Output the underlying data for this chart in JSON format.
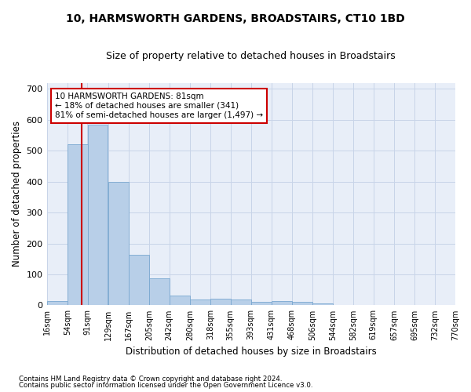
{
  "title": "10, HARMSWORTH GARDENS, BROADSTAIRS, CT10 1BD",
  "subtitle": "Size of property relative to detached houses in Broadstairs",
  "xlabel": "Distribution of detached houses by size in Broadstairs",
  "ylabel": "Number of detached properties",
  "bar_color": "#b8cfe8",
  "bar_edge_color": "#7aa8d0",
  "grid_color": "#c8d4e8",
  "background_color": "#e8eef8",
  "bin_edges": [
    16,
    54,
    91,
    129,
    167,
    205,
    242,
    280,
    318,
    355,
    393,
    431,
    468,
    506,
    544,
    582,
    619,
    657,
    695,
    732,
    770
  ],
  "bar_heights": [
    14,
    521,
    584,
    400,
    163,
    88,
    31,
    18,
    21,
    19,
    11,
    13,
    11,
    6,
    0,
    0,
    0,
    0,
    0,
    0
  ],
  "property_size": 81,
  "vline_color": "#cc0000",
  "annotation_line1": "10 HARMSWORTH GARDENS: 81sqm",
  "annotation_line2": "← 18% of detached houses are smaller (341)",
  "annotation_line3": "81% of semi-detached houses are larger (1,497) →",
  "annotation_box_color": "#ffffff",
  "annotation_box_edge_color": "#cc0000",
  "ylim": [
    0,
    720
  ],
  "yticks": [
    0,
    100,
    200,
    300,
    400,
    500,
    600,
    700
  ],
  "footnote1": "Contains HM Land Registry data © Crown copyright and database right 2024.",
  "footnote2": "Contains public sector information licensed under the Open Government Licence v3.0."
}
